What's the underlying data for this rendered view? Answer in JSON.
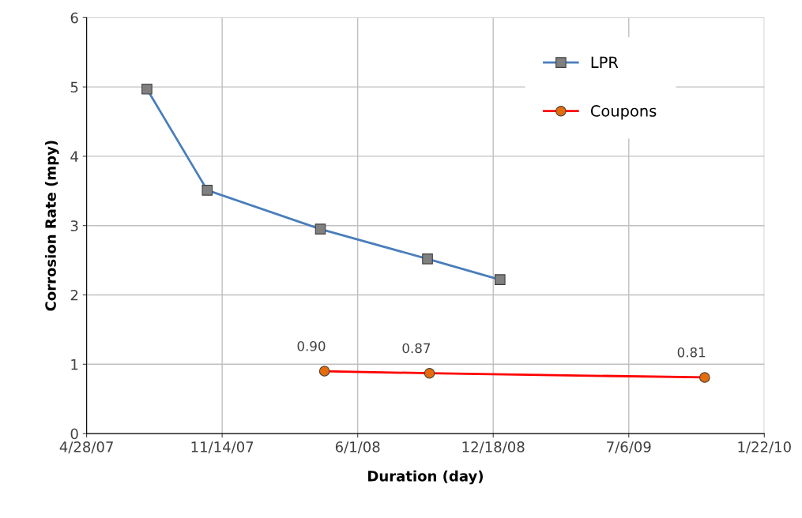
{
  "chart_data": {
    "type": "line",
    "xlabel": "Duration (day)",
    "ylabel": "Corrosion Rate (mpy)",
    "xlim": [
      "2007-04-28",
      "2010-01-22"
    ],
    "xticks": [
      {
        "value": "2007-04-28",
        "label": "4/28/07"
      },
      {
        "value": "2007-11-14",
        "label": "11/14/07"
      },
      {
        "value": "2008-06-01",
        "label": "6/1/08"
      },
      {
        "value": "2008-12-18",
        "label": "12/18/08"
      },
      {
        "value": "2009-07-06",
        "label": "7/6/09"
      },
      {
        "value": "2010-01-22",
        "label": "1/22/10"
      }
    ],
    "ylim": [
      0,
      6
    ],
    "yticks": [
      0,
      1,
      2,
      3,
      4,
      5,
      6
    ],
    "grid": true,
    "legend": "top right",
    "series": [
      {
        "name": "LPR",
        "color": "#4a7ebb",
        "marker": "square",
        "colors": [
          "#808080",
          "#808080",
          "#808080",
          "#808080",
          "#808080"
        ],
        "x": [
          "2007-07-26",
          "2007-10-23",
          "2008-04-07",
          "2008-09-12",
          "2008-12-28"
        ],
        "values": [
          4.97,
          3.51,
          2.95,
          2.52,
          2.22
        ]
      },
      {
        "name": "Coupons",
        "color": "#ff0000",
        "marker": "circle",
        "colors": [
          "#e46c0a",
          "#e46c0a",
          "#e46c0a"
        ],
        "x": [
          "2008-04-13",
          "2008-09-15",
          "2009-10-26"
        ],
        "values": [
          0.9,
          0.87,
          0.81
        ],
        "value_labels": [
          "0.90",
          "0.87",
          "0.81"
        ]
      }
    ]
  }
}
